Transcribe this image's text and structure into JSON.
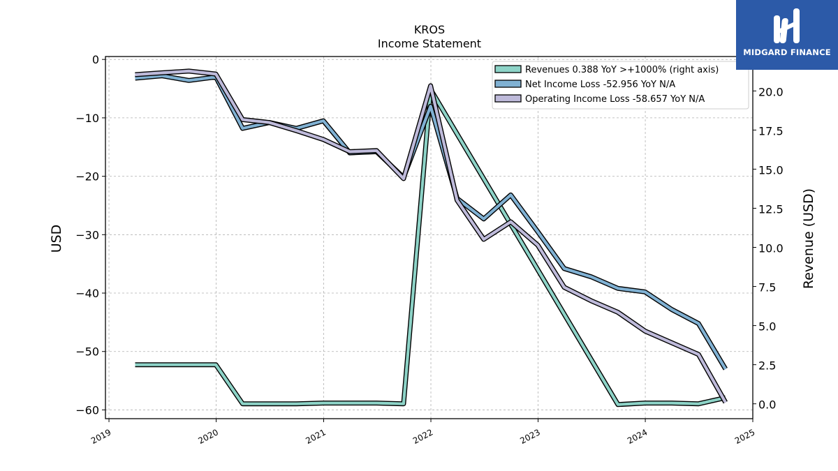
{
  "logo": {
    "text": "MIDGARD FINANCE",
    "background": "#2c5aa8"
  },
  "chart_data": {
    "type": "line",
    "title": "KROS",
    "subtitle": "Income Statement",
    "ylabel": "USD",
    "ylabel_right": "Revenue (USD)",
    "ylim": [
      -61.5,
      0.5
    ],
    "ylim_right": [
      -0.95,
      22.2
    ],
    "xlim": [
      "2018-12-20",
      "2025-01-01"
    ],
    "y_ticks": [
      0,
      -10,
      -20,
      -30,
      -40,
      -50,
      -60
    ],
    "y_ticks_right": [
      0.0,
      2.5,
      5.0,
      7.5,
      10.0,
      12.5,
      15.0,
      17.5,
      20.0
    ],
    "x_ticks": [
      "2019",
      "2020",
      "2021",
      "2022",
      "2023",
      "2024",
      "2025"
    ],
    "grid": true,
    "legend_position": "top-right",
    "series": [
      {
        "name": "Revenues  0.388 YoY >+1000% (right axis)",
        "axis": "right",
        "color": "#8dd3c7",
        "x": [
          "2019-03-31",
          "2019-06-30",
          "2019-09-30",
          "2019-12-31",
          "2020-03-31",
          "2020-06-30",
          "2020-09-30",
          "2020-12-31",
          "2021-03-31",
          "2021-06-30",
          "2021-09-30",
          "2021-12-31",
          "2023-09-30",
          "2023-12-31",
          "2024-03-31",
          "2024-06-30",
          "2024-09-30"
        ],
        "values": [
          2.5,
          2.5,
          2.5,
          2.5,
          0.0,
          0.0,
          0.0,
          0.05,
          0.05,
          0.05,
          0.0,
          20.1,
          -0.05,
          0.05,
          0.05,
          0.0,
          0.39
        ]
      },
      {
        "name": "Net Income Loss  -52.956 YoY N/A",
        "axis": "left",
        "color": "#80b1d3",
        "x": [
          "2019-03-31",
          "2019-06-30",
          "2019-09-30",
          "2019-12-31",
          "2020-03-31",
          "2020-06-30",
          "2020-09-30",
          "2020-12-31",
          "2021-03-31",
          "2021-06-30",
          "2021-09-30",
          "2021-12-31",
          "2022-03-31",
          "2022-06-30",
          "2022-09-30",
          "2022-12-31",
          "2023-03-31",
          "2023-06-30",
          "2023-09-30",
          "2023-12-31",
          "2024-03-31",
          "2024-06-30",
          "2024-09-30"
        ],
        "values": [
          -3.2,
          -2.8,
          -3.6,
          -3.0,
          -11.8,
          -10.8,
          -11.8,
          -10.5,
          -16.0,
          -15.8,
          -20.2,
          -8.0,
          -23.8,
          -27.3,
          -23.2,
          -29.5,
          -35.8,
          -37.2,
          -39.2,
          -39.8,
          -42.8,
          -45.2,
          -53.0
        ]
      },
      {
        "name": "Operating Income Loss  -58.657 YoY N/A",
        "axis": "left",
        "color": "#bebada",
        "x": [
          "2019-03-31",
          "2019-06-30",
          "2019-09-30",
          "2019-12-31",
          "2020-03-31",
          "2020-06-30",
          "2020-09-30",
          "2020-12-31",
          "2021-03-31",
          "2021-06-30",
          "2021-09-30",
          "2021-12-31",
          "2022-03-31",
          "2022-06-30",
          "2022-09-30",
          "2022-12-31",
          "2023-03-31",
          "2023-06-30",
          "2023-09-30",
          "2023-12-31",
          "2024-03-31",
          "2024-06-30",
          "2024-09-30"
        ],
        "values": [
          -2.6,
          -2.3,
          -2.0,
          -2.5,
          -10.3,
          -10.8,
          -12.2,
          -13.7,
          -15.8,
          -15.6,
          -20.4,
          -4.5,
          -24.1,
          -30.8,
          -27.8,
          -31.8,
          -39.0,
          -41.3,
          -43.3,
          -46.5,
          -48.5,
          -50.5,
          -58.7
        ]
      }
    ]
  }
}
